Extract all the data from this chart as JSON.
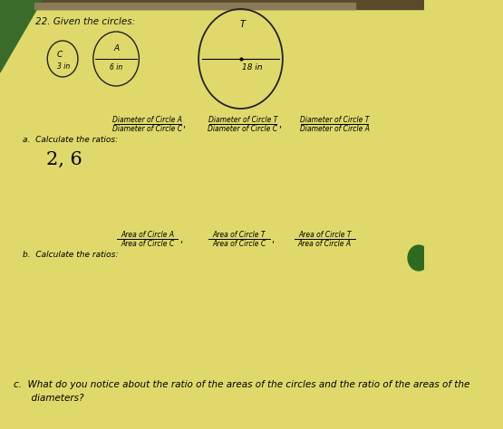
{
  "page_background": "#dfd96b",
  "green_corner_color": "#3a6b2a",
  "dark_header_color": "#6b5a3a",
  "title_text": "22. Given the circles:",
  "circle_C_label": "C",
  "circle_C_size_label": "3 in",
  "circle_A_label": "A",
  "circle_A_size_label": "6 in",
  "circle_T_label": "T",
  "circle_T_size_label": "18 in",
  "part_a_intro": "a.  Calculate the ratios:",
  "part_a_ratio1_num": "Diameter of Circle A",
  "part_a_ratio1_den": "Diameter of Circle C",
  "part_a_ratio2_num": "Diameter of Circle T",
  "part_a_ratio2_den": "Diameter of Circle C",
  "part_a_ratio3_num": "Diameter of Circle T",
  "part_a_ratio3_den": "Diameter of Circle A",
  "part_a_answer": "2, 6",
  "part_b_intro": "b.  Calculate the ratios:",
  "part_b_ratio1_num": "Area of Circle A",
  "part_b_ratio1_den": "Area of Circle C",
  "part_b_ratio2_num": "Area of Circle T",
  "part_b_ratio2_den": "Area of Circle C",
  "part_b_ratio3_num": "Area of Circle T",
  "part_b_ratio3_den": "Area of Circle A",
  "part_c_text": "c.  What do you notice about the ratio of the areas of the circles and the ratio of the areas of the\n      diameters?",
  "green_dot_color": "#2e6b20",
  "photo_tilt_deg": -1.5
}
